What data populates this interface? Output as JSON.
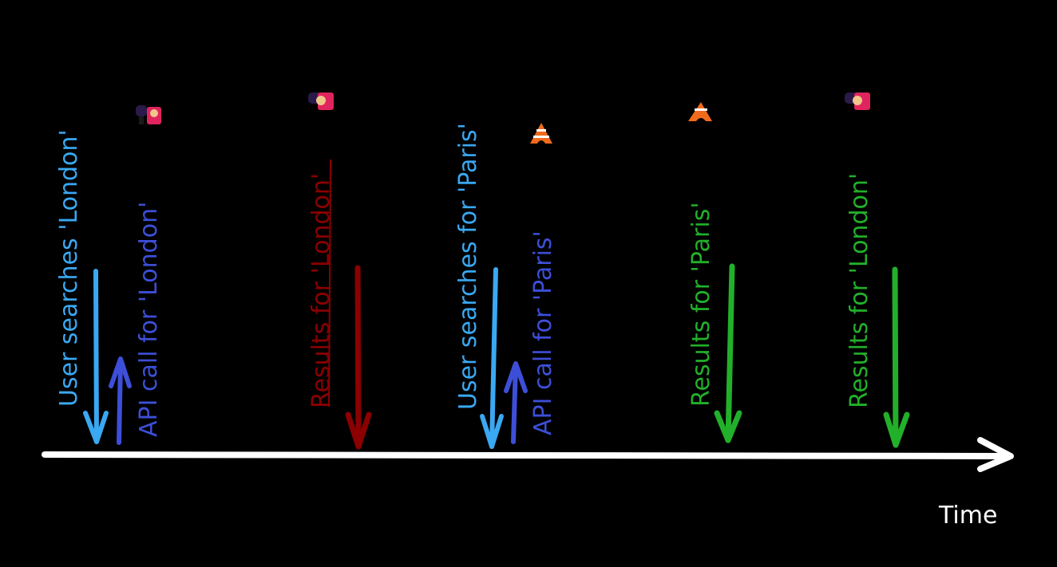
{
  "axis": {
    "label": "Time",
    "color": "#ffffff"
  },
  "colors": {
    "user_search": "#3aa8f2",
    "api_call": "#3d4fd8",
    "stale_result": "#8b0000",
    "fresh_result": "#22b02a",
    "background": "#000000"
  },
  "events": [
    {
      "id": "user-search-london",
      "label": "User searches 'London'",
      "kind": "user_search",
      "direction": "down"
    },
    {
      "id": "api-call-london",
      "label": "API call for 'London'",
      "kind": "api_call",
      "direction": "up",
      "icon": "guard-icon"
    },
    {
      "id": "results-london-stale",
      "label": "Results for 'London'",
      "kind": "stale_result",
      "direction": "down",
      "icon": "guard-icon",
      "struck": true
    },
    {
      "id": "user-search-paris",
      "label": "User searches for 'Paris'",
      "kind": "user_search",
      "direction": "down"
    },
    {
      "id": "api-call-paris",
      "label": "API call for 'Paris'",
      "kind": "api_call",
      "direction": "up",
      "icon": "eiffel-tower-icon"
    },
    {
      "id": "results-paris",
      "label": "Results for 'Paris'",
      "kind": "fresh_result",
      "direction": "down",
      "icon": "eiffel-tower-icon"
    },
    {
      "id": "results-london-late",
      "label": "Results for 'London'",
      "kind": "fresh_result",
      "direction": "down",
      "icon": "guard-icon"
    }
  ]
}
